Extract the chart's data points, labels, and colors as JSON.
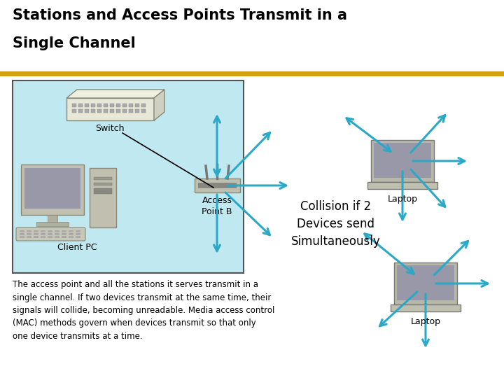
{
  "title_line1": "Stations and Access Points Transmit in a",
  "title_line2": "Single Channel",
  "separator_color": "#d4a017",
  "box_bg": "#c0e8f0",
  "arrow_color": "#2aa8c8",
  "label_switch": "Switch",
  "label_client": "Client PC",
  "label_ap": "Access\nPoint B",
  "label_laptop1": "Laptop",
  "label_laptop2": "Laptop",
  "collision_text": "Collision if 2\nDevices send\nSimultaneously",
  "body_text_parts": [
    [
      "The access point and all the stations it serves ",
      false
    ],
    [
      "transmit in a",
      true
    ],
    [
      "\nsingle channel. If two devices ",
      false
    ],
    [
      "transmit",
      true
    ],
    [
      " at the same time, their\nsignals will collide, becoming unreadable. Media access control\n(MAC) methods govern when devices ",
      false
    ],
    [
      "transmit",
      true
    ],
    [
      " so that only\none device transmits at a time.",
      false
    ]
  ],
  "figsize": [
    7.2,
    5.4
  ],
  "dpi": 100
}
